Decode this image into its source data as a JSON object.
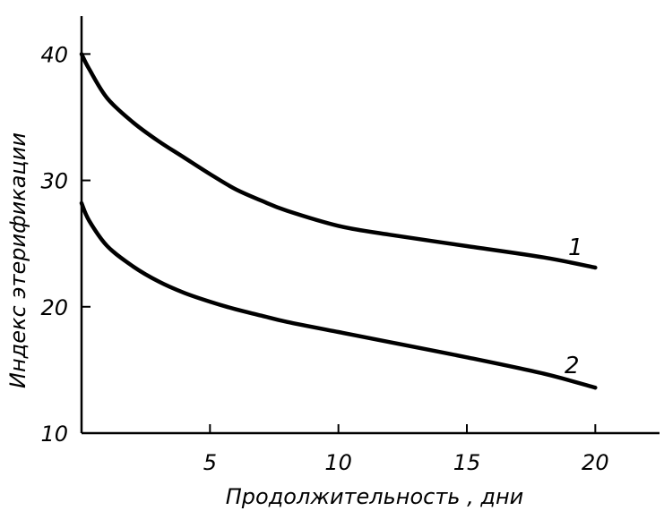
{
  "chart_data": {
    "type": "line",
    "title": "",
    "xlabel": "Продолжительность , дни",
    "ylabel": "Индекс этерификации",
    "xlim": [
      0,
      22.5
    ],
    "ylim": [
      10,
      43
    ],
    "xticks": [
      5,
      10,
      15,
      20
    ],
    "yticks": [
      10,
      20,
      30,
      40
    ],
    "grid": false,
    "series": [
      {
        "name": "1",
        "x": [
          0,
          0.3,
          1,
          2,
          3,
          4,
          5,
          6,
          7,
          8,
          10,
          12,
          15,
          18,
          20
        ],
        "y": [
          40,
          38.8,
          36.5,
          34.6,
          33.1,
          31.8,
          30.5,
          29.3,
          28.4,
          27.6,
          26.4,
          25.7,
          24.8,
          23.9,
          23.1
        ]
      },
      {
        "name": "2",
        "x": [
          0,
          0.3,
          1,
          2,
          3,
          4,
          5,
          6,
          7,
          8,
          10,
          12,
          15,
          18,
          20
        ],
        "y": [
          28.2,
          26.8,
          24.8,
          23.2,
          22.0,
          21.1,
          20.4,
          19.8,
          19.3,
          18.8,
          18.0,
          17.2,
          16.0,
          14.7,
          13.6
        ]
      }
    ]
  }
}
